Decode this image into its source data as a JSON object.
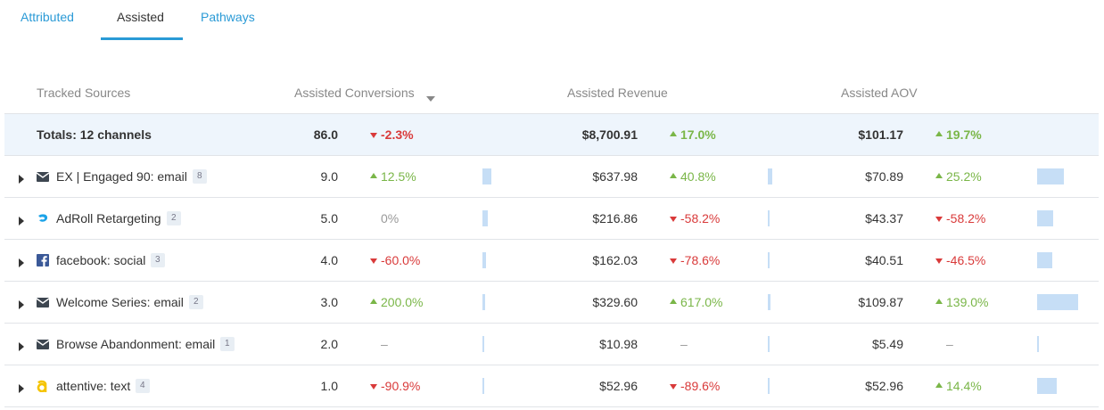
{
  "tabs": [
    "Attributed",
    "Assisted",
    "Pathways"
  ],
  "active_tab": 1,
  "columns": [
    "Tracked Sources",
    "Assisted Conversions",
    "Assisted Revenue",
    "Assisted AOV"
  ],
  "totals": {
    "label": "Totals: 12 channels",
    "conversions": {
      "value": 86.0,
      "label": "86.0"
    },
    "conversions_change": "-2.3%",
    "revenue": {
      "value": 8700.91,
      "label": "$8,700.91"
    },
    "revenue_change": "17.0%",
    "aov": {
      "value": 101.17,
      "label": "$101.17"
    },
    "aov_change": "19.7%"
  },
  "rows": [
    {
      "name": "EX | Engaged 90: email",
      "icon": "email",
      "count": 8,
      "conversions": {
        "value": 9.0,
        "label": "9.0"
      },
      "conversions_change": "12.5%",
      "revenue": {
        "value": 637.98,
        "label": "$637.98"
      },
      "revenue_change": "40.8%",
      "aov": {
        "value": 70.89,
        "label": "$70.89"
      },
      "aov_change": "25.2%"
    },
    {
      "name": "AdRoll Retargeting",
      "icon": "adroll",
      "count": 2,
      "conversions": {
        "value": 5.0,
        "label": "5.0"
      },
      "conversions_change": "0%",
      "revenue": {
        "value": 216.86,
        "label": "$216.86"
      },
      "revenue_change": "-58.2%",
      "aov": {
        "value": 43.37,
        "label": "$43.37"
      },
      "aov_change": "-58.2%"
    },
    {
      "name": "facebook: social",
      "icon": "facebook",
      "count": 3,
      "conversions": {
        "value": 4.0,
        "label": "4.0"
      },
      "conversions_change": "-60.0%",
      "revenue": {
        "value": 162.03,
        "label": "$162.03"
      },
      "revenue_change": "-78.6%",
      "aov": {
        "value": 40.51,
        "label": "$40.51"
      },
      "aov_change": "-46.5%"
    },
    {
      "name": "Welcome Series: email",
      "icon": "email",
      "count": 2,
      "conversions": {
        "value": 3.0,
        "label": "3.0"
      },
      "conversions_change": "200.0%",
      "revenue": {
        "value": 329.6,
        "label": "$329.60"
      },
      "revenue_change": "617.0%",
      "aov": {
        "value": 109.87,
        "label": "$109.87"
      },
      "aov_change": "139.0%"
    },
    {
      "name": "Browse Abandonment: email",
      "icon": "email",
      "count": 1,
      "conversions": {
        "value": 2.0,
        "label": "2.0"
      },
      "conversions_change": "–",
      "revenue": {
        "value": 10.98,
        "label": "$10.98"
      },
      "revenue_change": "–",
      "aov": {
        "value": 5.49,
        "label": "$5.49"
      },
      "aov_change": "–"
    },
    {
      "name": "attentive: text",
      "icon": "attentive",
      "count": 4,
      "conversions": {
        "value": 1.0,
        "label": "1.0"
      },
      "conversions_change": "-90.9%",
      "revenue": {
        "value": 52.96,
        "label": "$52.96"
      },
      "revenue_change": "-89.6%",
      "aov": {
        "value": 52.96,
        "label": "$52.96"
      },
      "aov_change": "14.4%"
    }
  ]
}
